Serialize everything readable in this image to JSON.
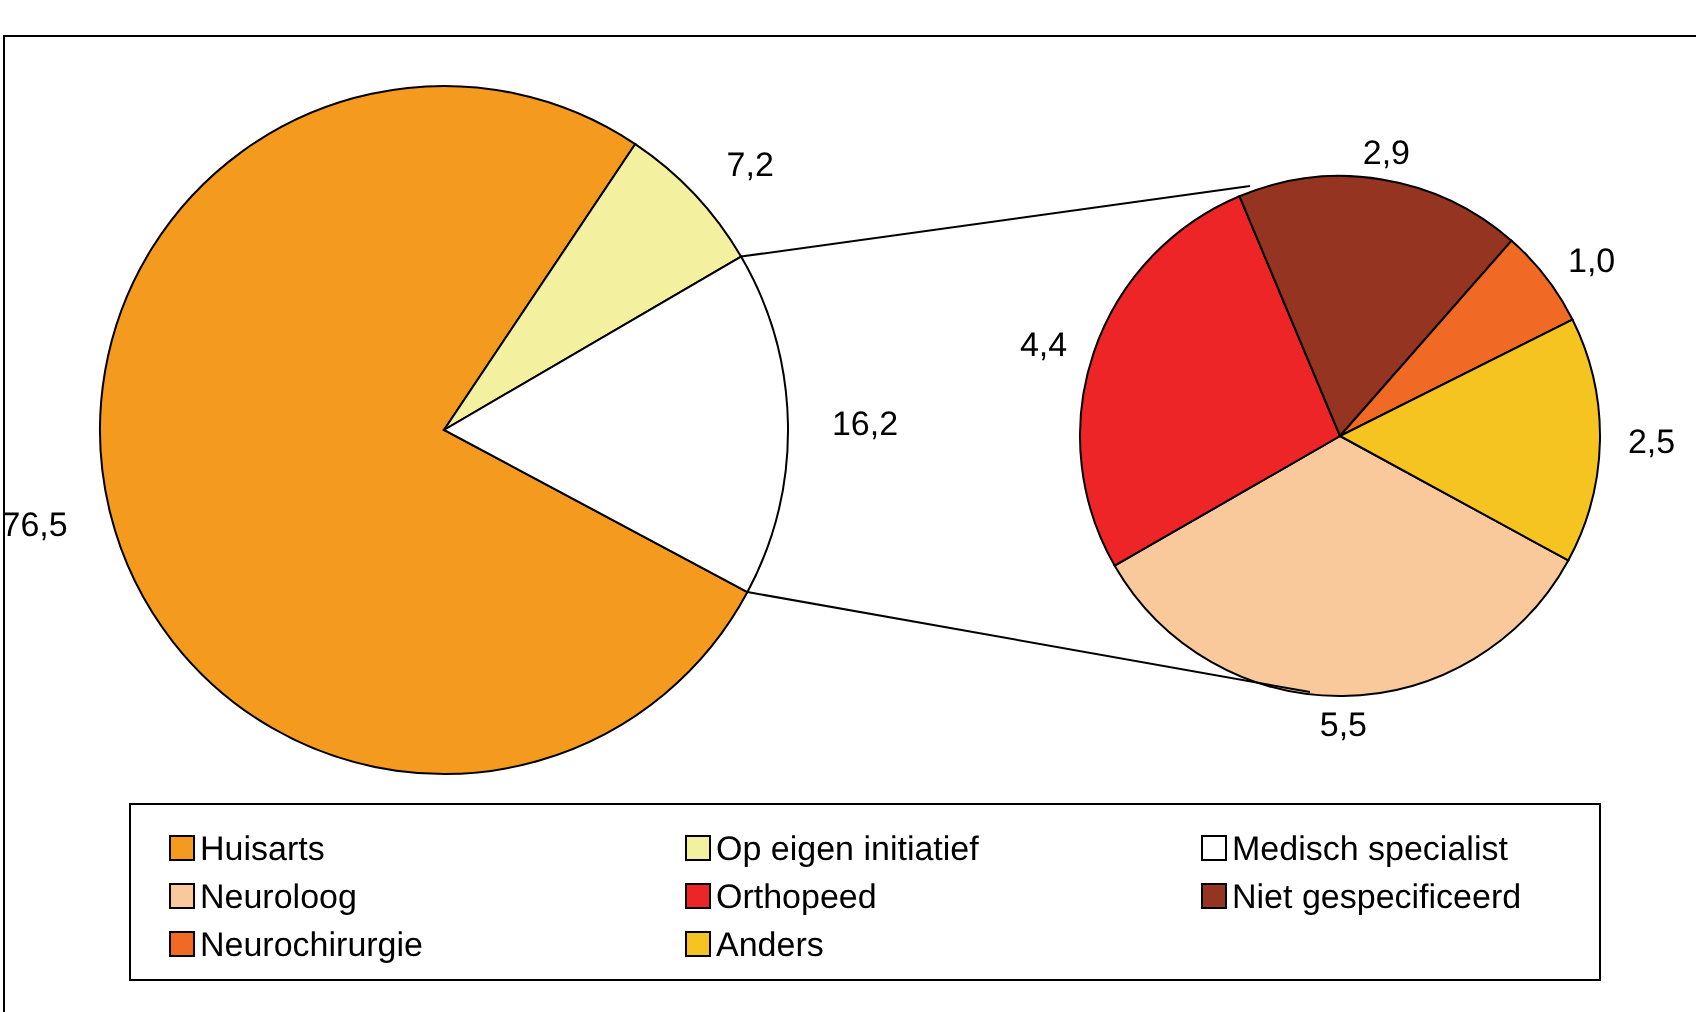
{
  "chart_data": [
    {
      "type": "pie",
      "categories": [
        "Huisarts",
        "Op eigen initiatief",
        "Medisch specialist"
      ],
      "values": [
        76.5,
        7.2,
        16.2
      ],
      "value_labels": [
        "76,5",
        "7,2",
        "16,2"
      ],
      "colors": [
        "#f39a1f",
        "#f3f0a0",
        "#ffffff"
      ],
      "legend": "bottom"
    },
    {
      "type": "pie",
      "categories": [
        "Neuroloog",
        "Orthopeed",
        "Niet gespecificeerd",
        "Neurochirurgie",
        "Anders"
      ],
      "values": [
        5.5,
        4.4,
        2.9,
        1.0,
        2.5
      ],
      "value_labels": [
        "5,5",
        "4,4",
        "2,9",
        "1,0",
        "2,5"
      ],
      "colors": [
        "#f9c99c",
        "#ee2526",
        "#953420",
        "#f06a25",
        "#f5c420"
      ],
      "legend": "bottom"
    }
  ]
}
